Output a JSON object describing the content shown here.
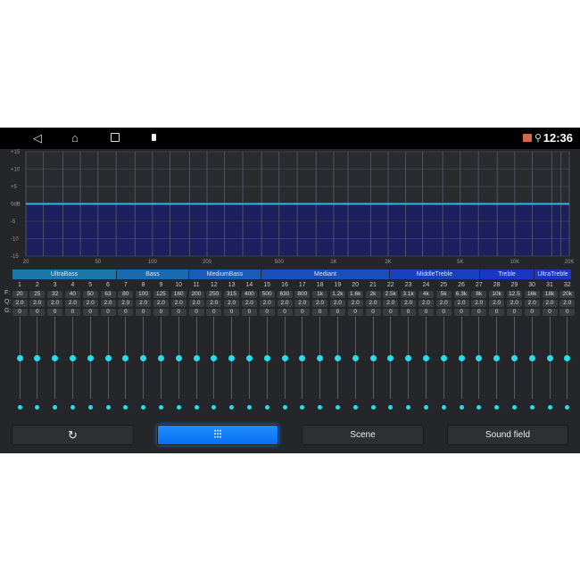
{
  "statusbar": {
    "time": "12:36",
    "icons": [
      "back-icon",
      "home-icon",
      "recents-icon",
      "usb-icon",
      "cast-icon",
      "location-icon"
    ]
  },
  "chart_data": {
    "type": "area",
    "ylabels": [
      "+15",
      "+10",
      "+5",
      "0dB",
      "-5",
      "-10",
      "-15"
    ],
    "ylim": [
      -15,
      15
    ],
    "xlabels": [
      "20",
      "50",
      "100",
      "200",
      "500",
      "1K",
      "2K",
      "5K",
      "10K",
      "20K"
    ],
    "xscale": "log",
    "xlim": [
      20,
      20000
    ],
    "curve_level_db": 0,
    "line_color": "#2fb8e6",
    "fill_color": "#1e1f5e"
  },
  "groups": [
    {
      "label": "UltraBass",
      "color": "#1a77a8"
    },
    {
      "label": "Bass",
      "color": "#1a6ab0"
    },
    {
      "label": "MediumBass",
      "color": "#1a5cb5"
    },
    {
      "label": "Mediant",
      "color": "#1a4fbb"
    },
    {
      "label": "MiddleTreble",
      "color": "#1a3fbf"
    },
    {
      "label": "Treble",
      "color": "#1a36c4"
    },
    {
      "label": "UltraTreble",
      "color": "#1a35c8"
    }
  ],
  "row_labels": {
    "f": "F:",
    "q": "Q:",
    "g": "G:"
  },
  "bands": [
    {
      "n": "1",
      "f": "20",
      "q": "2.0",
      "g": "0"
    },
    {
      "n": "2",
      "f": "25",
      "q": "2.0",
      "g": "0"
    },
    {
      "n": "3",
      "f": "32",
      "q": "2.0",
      "g": "0"
    },
    {
      "n": "4",
      "f": "40",
      "q": "2.0",
      "g": "0"
    },
    {
      "n": "5",
      "f": "50",
      "q": "2.0",
      "g": "0"
    },
    {
      "n": "6",
      "f": "63",
      "q": "2.0",
      "g": "0"
    },
    {
      "n": "7",
      "f": "80",
      "q": "2.0",
      "g": "0"
    },
    {
      "n": "8",
      "f": "100",
      "q": "2.0",
      "g": "0"
    },
    {
      "n": "9",
      "f": "125",
      "q": "2.0",
      "g": "0"
    },
    {
      "n": "10",
      "f": "160",
      "q": "2.0",
      "g": "0"
    },
    {
      "n": "11",
      "f": "200",
      "q": "2.0",
      "g": "0"
    },
    {
      "n": "12",
      "f": "250",
      "q": "2.0",
      "g": "0"
    },
    {
      "n": "13",
      "f": "315",
      "q": "2.0",
      "g": "0"
    },
    {
      "n": "14",
      "f": "400",
      "q": "2.0",
      "g": "0"
    },
    {
      "n": "15",
      "f": "500",
      "q": "2.0",
      "g": "0"
    },
    {
      "n": "16",
      "f": "630",
      "q": "2.0",
      "g": "0"
    },
    {
      "n": "17",
      "f": "800",
      "q": "2.0",
      "g": "0"
    },
    {
      "n": "18",
      "f": "1k",
      "q": "2.0",
      "g": "0"
    },
    {
      "n": "19",
      "f": "1.2k",
      "q": "2.0",
      "g": "0"
    },
    {
      "n": "20",
      "f": "1.6k",
      "q": "2.0",
      "g": "0"
    },
    {
      "n": "21",
      "f": "2k",
      "q": "2.0",
      "g": "0"
    },
    {
      "n": "22",
      "f": "2.5k",
      "q": "2.0",
      "g": "0"
    },
    {
      "n": "23",
      "f": "3.1k",
      "q": "2.0",
      "g": "0"
    },
    {
      "n": "24",
      "f": "4k",
      "q": "2.0",
      "g": "0"
    },
    {
      "n": "25",
      "f": "5k",
      "q": "2.0",
      "g": "0"
    },
    {
      "n": "26",
      "f": "6.3k",
      "q": "2.0",
      "g": "0"
    },
    {
      "n": "27",
      "f": "8k",
      "q": "2.0",
      "g": "0"
    },
    {
      "n": "28",
      "f": "10k",
      "q": "2.0",
      "g": "0"
    },
    {
      "n": "29",
      "f": "12.5",
      "q": "2.0",
      "g": "0"
    },
    {
      "n": "30",
      "f": "16k",
      "q": "2.0",
      "g": "0"
    },
    {
      "n": "31",
      "f": "18k",
      "q": "2.0",
      "g": "0"
    },
    {
      "n": "32",
      "f": "20k",
      "q": "2.0",
      "g": "0"
    }
  ],
  "buttons": {
    "reset_icon": "reset-icon",
    "eq_icon": "equalizer-icon",
    "scene": "Scene",
    "sound_field": "Sound field"
  }
}
